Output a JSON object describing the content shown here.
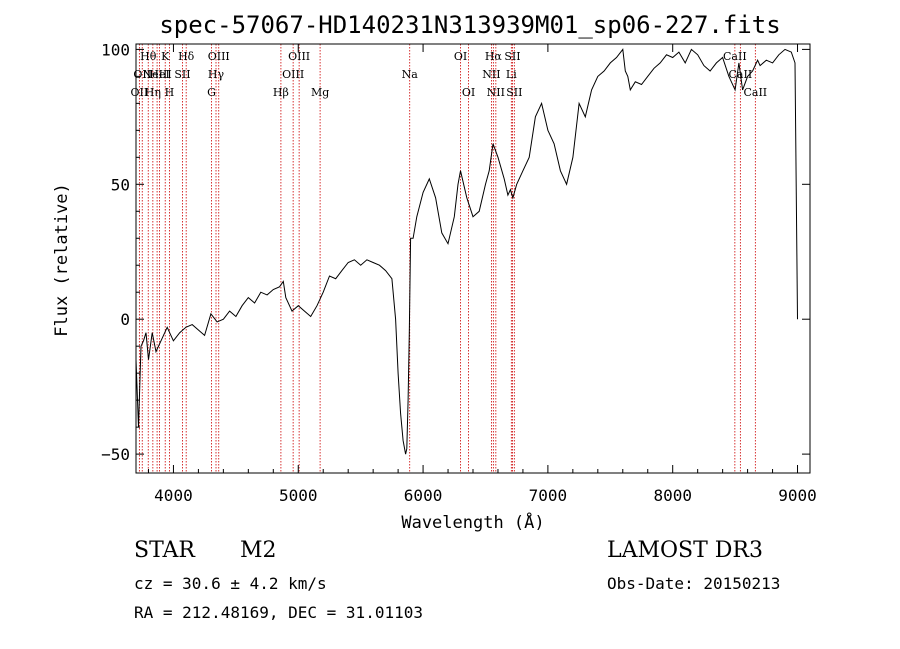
{
  "chart_data": {
    "type": "line",
    "title": "spec-57067-HD140231N313939M01_sp06-227.fits",
    "xlabel": "Wavelength (Å)",
    "ylabel": "Flux (relative)",
    "xlim": [
      3700,
      9100
    ],
    "ylim": [
      -57,
      102
    ],
    "xticks": [
      4000,
      5000,
      6000,
      7000,
      8000,
      9000
    ],
    "yticks": [
      -50,
      0,
      50,
      100
    ],
    "grid": false,
    "series": [
      {
        "name": "spectrum",
        "x": [
          3700,
          3720,
          3740,
          3760,
          3780,
          3800,
          3830,
          3860,
          3900,
          3950,
          4000,
          4050,
          4100,
          4150,
          4200,
          4250,
          4300,
          4350,
          4400,
          4450,
          4500,
          4550,
          4600,
          4650,
          4700,
          4750,
          4800,
          4850,
          4880,
          4900,
          4950,
          5000,
          5050,
          5100,
          5150,
          5200,
          5250,
          5300,
          5350,
          5400,
          5450,
          5500,
          5550,
          5600,
          5650,
          5700,
          5750,
          5780,
          5800,
          5820,
          5840,
          5860,
          5870,
          5880,
          5890,
          5900,
          5920,
          5950,
          6000,
          6050,
          6100,
          6150,
          6200,
          6250,
          6280,
          6300,
          6350,
          6400,
          6450,
          6500,
          6530,
          6560,
          6600,
          6650,
          6680,
          6700,
          6720,
          6750,
          6800,
          6850,
          6900,
          6950,
          7000,
          7050,
          7100,
          7150,
          7200,
          7250,
          7300,
          7350,
          7400,
          7450,
          7500,
          7550,
          7600,
          7620,
          7640,
          7660,
          7700,
          7750,
          7800,
          7850,
          7900,
          7950,
          8000,
          8050,
          8100,
          8150,
          8200,
          8250,
          8300,
          8350,
          8400,
          8450,
          8500,
          8530,
          8560,
          8600,
          8640,
          8680,
          8700,
          8750,
          8800,
          8850,
          8900,
          8950,
          8980,
          9000
        ],
        "y": [
          -15,
          -40,
          -10,
          -8,
          -5,
          -15,
          -5,
          -12,
          -8,
          -3,
          -8,
          -5,
          -3,
          -2,
          -4,
          -6,
          2,
          -1,
          0,
          3,
          1,
          5,
          8,
          6,
          10,
          9,
          11,
          12,
          14,
          8,
          3,
          5,
          3,
          1,
          5,
          10,
          16,
          15,
          18,
          21,
          22,
          20,
          22,
          21,
          20,
          18,
          15,
          0,
          -20,
          -35,
          -45,
          -50,
          -48,
          -30,
          -5,
          30,
          30,
          38,
          47,
          52,
          45,
          32,
          28,
          38,
          50,
          55,
          45,
          38,
          40,
          50,
          55,
          65,
          60,
          52,
          46,
          48,
          45,
          50,
          55,
          60,
          75,
          80,
          70,
          65,
          55,
          50,
          60,
          80,
          75,
          85,
          90,
          92,
          95,
          97,
          100,
          92,
          90,
          85,
          88,
          87,
          90,
          93,
          95,
          98,
          97,
          99,
          95,
          100,
          98,
          94,
          92,
          95,
          97,
          90,
          85,
          95,
          85,
          90,
          92,
          96,
          94,
          96,
          95,
          98,
          100,
          99,
          95,
          0
        ]
      }
    ],
    "lines": [
      {
        "w": 3727,
        "label": "OII",
        "row": 2
      },
      {
        "w": 3750,
        "label": "OII",
        "row": 1
      },
      {
        "w": 3798,
        "label": "Hθ",
        "row": 0
      },
      {
        "w": 3835,
        "label": "Hη",
        "row": 2
      },
      {
        "w": 3869,
        "label": "NeIII",
        "row": 1
      },
      {
        "w": 3889,
        "label": "HeI",
        "row": 1
      },
      {
        "w": 3934,
        "label": "K",
        "row": 0
      },
      {
        "w": 3968,
        "label": "H",
        "row": 2
      },
      {
        "w": 4102,
        "label": "Hδ",
        "row": 0
      },
      {
        "w": 4072,
        "label": "SII",
        "row": 1
      },
      {
        "w": 4305,
        "label": "G",
        "row": 2
      },
      {
        "w": 4341,
        "label": "Hγ",
        "row": 1
      },
      {
        "w": 4363,
        "label": "OIII",
        "row": 0
      },
      {
        "w": 4861,
        "label": "Hβ",
        "row": 2
      },
      {
        "w": 4959,
        "label": "OIII",
        "row": 1
      },
      {
        "w": 5007,
        "label": "OIII",
        "row": 0
      },
      {
        "w": 5175,
        "label": "Mg",
        "row": 2
      },
      {
        "w": 5893,
        "label": "Na",
        "row": 1
      },
      {
        "w": 6300,
        "label": "OI",
        "row": 0
      },
      {
        "w": 6364,
        "label": "OI",
        "row": 2
      },
      {
        "w": 6548,
        "label": "NII",
        "row": 1
      },
      {
        "w": 6563,
        "label": "Hα",
        "row": 0
      },
      {
        "w": 6583,
        "label": "NII",
        "row": 2
      },
      {
        "w": 6707,
        "label": "Li",
        "row": 1
      },
      {
        "w": 6716,
        "label": "SII",
        "row": 0
      },
      {
        "w": 6731,
        "label": "SII",
        "row": 2
      },
      {
        "w": 8498,
        "label": "CaII",
        "row": 0
      },
      {
        "w": 8542,
        "label": "CaII",
        "row": 1
      },
      {
        "w": 8662,
        "label": "CaII",
        "row": 2
      }
    ]
  },
  "info": {
    "class": "STAR",
    "subclass": "M2",
    "cz": "cz = 30.6 ± 4.2 km/s",
    "coords": "RA = 212.48169, DEC =  31.01103",
    "survey": "LAMOST DR3",
    "obs_date": "Obs-Date: 20150213"
  }
}
